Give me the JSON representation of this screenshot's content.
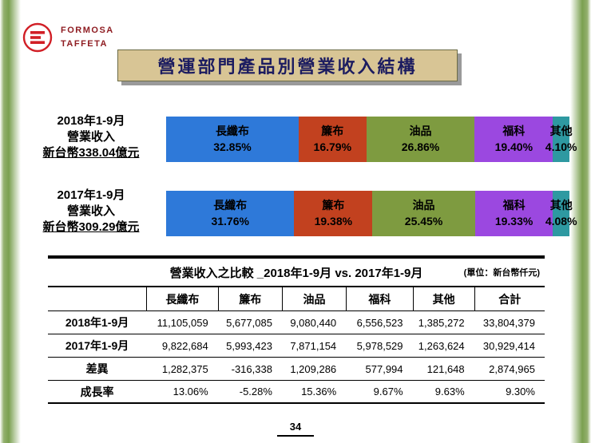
{
  "page": {
    "page_number": "34"
  },
  "logo": {
    "line1": "FORMOSA",
    "line2": "TAFFETA"
  },
  "title": {
    "text": "營運部門產品別營業收入結構"
  },
  "chart_data": {
    "type": "bar",
    "stacked": true,
    "orientation": "horizontal",
    "unit": "percent",
    "categories": [
      "長纖布",
      "簾布",
      "油品",
      "福科",
      "其他"
    ],
    "segment_colors": [
      "#2e79d9",
      "#c2411f",
      "#7e9b40",
      "#9b48e0",
      "#2e99a1"
    ],
    "series": [
      {
        "label_lines": [
          "2018年1-9月",
          "營業收入",
          "新台幣338.04億元"
        ],
        "values": [
          32.85,
          16.79,
          26.86,
          19.4,
          4.1
        ],
        "value_labels": [
          "32.85%",
          "16.79%",
          "26.86%",
          "19.40%",
          "4.10%"
        ]
      },
      {
        "label_lines": [
          "2017年1-9月",
          "營業收入",
          "新台幣309.29億元"
        ],
        "values": [
          31.76,
          19.38,
          25.45,
          19.33,
          4.08
        ],
        "value_labels": [
          "31.76%",
          "19.38%",
          "25.45%",
          "19.33%",
          "4.08%"
        ]
      }
    ]
  },
  "table": {
    "title": "營業收入之比較 _2018年1-9月 vs. 2017年1-9月",
    "unit_note": "(單位：新台幣仟元)",
    "column_headers": [
      "長纖布",
      "簾布",
      "油品",
      "福科",
      "其他",
      "合計"
    ],
    "rows": [
      {
        "label": "2018年1-9月",
        "values": [
          "11,105,059",
          "5,677,085",
          "9,080,440",
          "6,556,523",
          "1,385,272",
          "33,804,379"
        ]
      },
      {
        "label": "2017年1-9月",
        "values": [
          "9,822,684",
          "5,993,423",
          "7,871,154",
          "5,978,529",
          "1,263,624",
          "30,929,414"
        ]
      },
      {
        "label": "差異",
        "values": [
          "1,282,375",
          "-316,338",
          "1,209,286",
          "577,994",
          "121,648",
          "2,874,965"
        ]
      },
      {
        "label": "成長率",
        "values": [
          "13.06%",
          "-5.28%",
          "15.36%",
          "9.67%",
          "9.63%",
          "9.30%"
        ]
      }
    ]
  }
}
